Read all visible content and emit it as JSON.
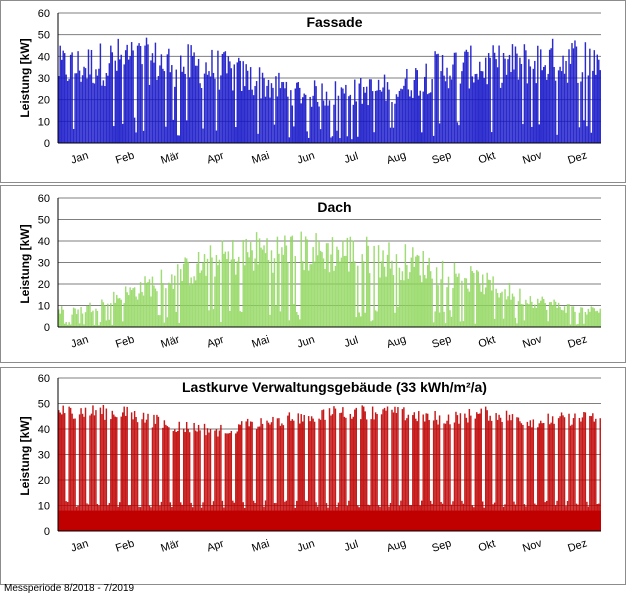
{
  "footer_note": "Messperiode 8/2018 - 7/2019",
  "chart_data": [
    {
      "type": "area",
      "title": "Fassade",
      "ylabel": "Leistung [kW]",
      "xlabel": "",
      "ylim": [
        0,
        60
      ],
      "yticks": [
        0,
        10,
        20,
        30,
        40,
        50,
        60
      ],
      "grid": true,
      "color": "#1414c8",
      "categories": [
        "Jan",
        "Feb",
        "Mär",
        "Apr",
        "Mai",
        "Jun",
        "Jul",
        "Aug",
        "Sep",
        "Okt",
        "Nov",
        "Dez"
      ],
      "series": [
        {
          "values": [
            45,
            50,
            47,
            44,
            36,
            29,
            30,
            33,
            45,
            45,
            48,
            50
          ]
        }
      ]
    },
    {
      "type": "area",
      "title": "Dach",
      "ylabel": "Leistung [kW]",
      "xlabel": "",
      "ylim": [
        0,
        60
      ],
      "yticks": [
        0,
        10,
        20,
        30,
        40,
        50,
        60
      ],
      "grid": true,
      "color": "#8ed65a",
      "categories": [
        "Jan",
        "Feb",
        "Mär",
        "Apr",
        "Mai",
        "Jun",
        "Jul",
        "Aug",
        "Sep",
        "Okt",
        "Nov",
        "Dez"
      ],
      "series": [
        {
          "values": [
            10,
            20,
            30,
            40,
            46,
            45,
            44,
            40,
            34,
            25,
            16,
            10
          ]
        }
      ]
    },
    {
      "type": "area",
      "title": "Lastkurve Verwaltungsgebäude (33 kWh/m²/a)",
      "ylabel": "Leistung [kW]",
      "xlabel": "",
      "ylim": [
        0,
        60
      ],
      "yticks": [
        0,
        10,
        20,
        30,
        40,
        50,
        60
      ],
      "grid": true,
      "color": "#c00000",
      "categories": [
        "Jan",
        "Feb",
        "Mär",
        "Apr",
        "Mai",
        "Jun",
        "Jul",
        "Aug",
        "Sep",
        "Okt",
        "Nov",
        "Dez"
      ],
      "series": [
        {
          "values": [
            50,
            49,
            44,
            42,
            45,
            48,
            50,
            49,
            47,
            49,
            46,
            47
          ]
        }
      ]
    }
  ]
}
